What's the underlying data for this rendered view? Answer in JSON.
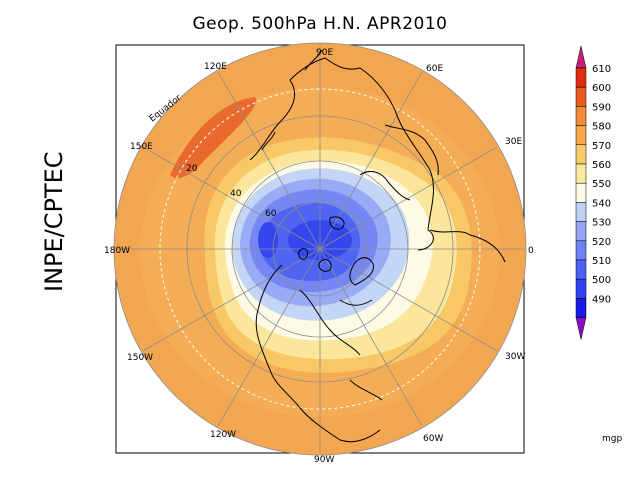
{
  "title": "Geop. 500hPa H.N. APR2010",
  "side_label": "INPE/CPTEC",
  "equator_label": "Equador",
  "map": {
    "projection": "north-polar-stereographic",
    "longitude_labels": [
      "90E",
      "60E",
      "30E",
      "0",
      "30W",
      "60W",
      "90W",
      "120W",
      "150W",
      "180W",
      "150E",
      "120E"
    ],
    "latitude_labels": [
      "20",
      "40",
      "60"
    ]
  },
  "colorbar": {
    "unit": "mgp",
    "levels": [
      490,
      500,
      510,
      520,
      530,
      540,
      550,
      560,
      570,
      580,
      590,
      600,
      610
    ],
    "colors": [
      "#1a1ae6",
      "#2e43f0",
      "#4d62f2",
      "#6f82f3",
      "#96a6f5",
      "#bfd0f5",
      "#fdfbe8",
      "#fbe9a0",
      "#f8cc6a",
      "#f5a94b",
      "#f08c3a",
      "#ea5a1e",
      "#e02e12"
    ],
    "arrow_low_color": "#8a0fc0",
    "arrow_high_color": "#c81e78"
  },
  "field_colors": {
    "ocean_outer": "#f1a24f",
    "subtropical_max": "#ea6a2e"
  }
}
